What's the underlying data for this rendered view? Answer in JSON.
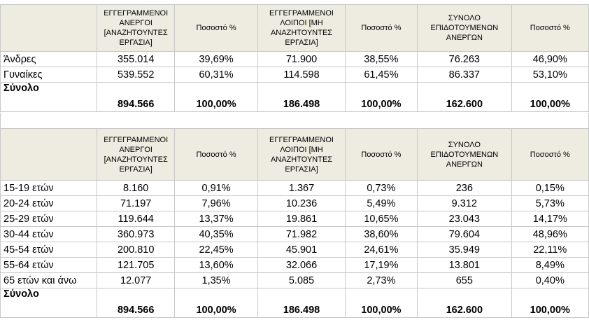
{
  "headers": {
    "c1": "ΕΓΓΕΓΡΑΜΜΕΝΟΙ ΑΝΕΡΓΟΙ [ΑΝΑΖΗΤΟΥΝΤΕΣ ΕΡΓΑΣΙΑ]",
    "c2": "Ποσοστό %",
    "c3": "ΕΓΓΕΓΡΑΜΜΕΝΟΙ ΛΟΙΠΟΙ [ΜΗ ΑΝΑΖΗΤΟΥΝΤΕΣ ΕΡΓΑΣΙΑ]",
    "c4": "Ποσοστό %",
    "c5": "ΣΥΝΟΛΟ ΕΠΙΔΟΤΟΥΜΕΝΩΝ ΑΝΕΡΓΩΝ",
    "c6": "Ποσοστό %"
  },
  "gender": [
    {
      "label": "Άνδρες",
      "v": [
        "355.014",
        "39,69%",
        "71.900",
        "38,55%",
        "76.263",
        "46,90%"
      ]
    },
    {
      "label": "Γυναίκες",
      "v": [
        "539.552",
        "60,31%",
        "114.598",
        "61,45%",
        "86.337",
        "53,10%"
      ]
    }
  ],
  "gender_total": {
    "label": "Σύνολο",
    "v": [
      "894.566",
      "100,00%",
      "186.498",
      "100,00%",
      "162.600",
      "100,00%"
    ]
  },
  "age": [
    {
      "label": "15-19  ετών",
      "v": [
        "8.160",
        "0,91%",
        "1.367",
        "0,73%",
        "236",
        "0,15%"
      ]
    },
    {
      "label": "20-24  ετών",
      "v": [
        "71.197",
        "7,96%",
        "10.236",
        "5,49%",
        "9.312",
        "5,73%"
      ]
    },
    {
      "label": "25-29 ετών",
      "v": [
        "119.644",
        "13,37%",
        "19.861",
        "10,65%",
        "23.043",
        "14,17%"
      ]
    },
    {
      "label": "30-44  ετών",
      "v": [
        "360.973",
        "40,35%",
        "71.982",
        "38,60%",
        "79.604",
        "48,96%"
      ]
    },
    {
      "label": "45-54 ετών",
      "v": [
        "200.810",
        "22,45%",
        "45.901",
        "24,61%",
        "35.949",
        "22,11%"
      ]
    },
    {
      "label": "55-64 ετών",
      "v": [
        "121.705",
        "13,60%",
        "32.066",
        "17,19%",
        "13.801",
        "8,49%"
      ]
    },
    {
      "label": "65 ετών και άνω",
      "v": [
        "12.077",
        "1,35%",
        "5.085",
        "2,73%",
        "655",
        "0,40%"
      ]
    }
  ],
  "age_total": {
    "label": "Σύνολο",
    "v": [
      "894.566",
      "100,00%",
      "186.498",
      "100,00%",
      "162.600",
      "100,00%"
    ]
  }
}
